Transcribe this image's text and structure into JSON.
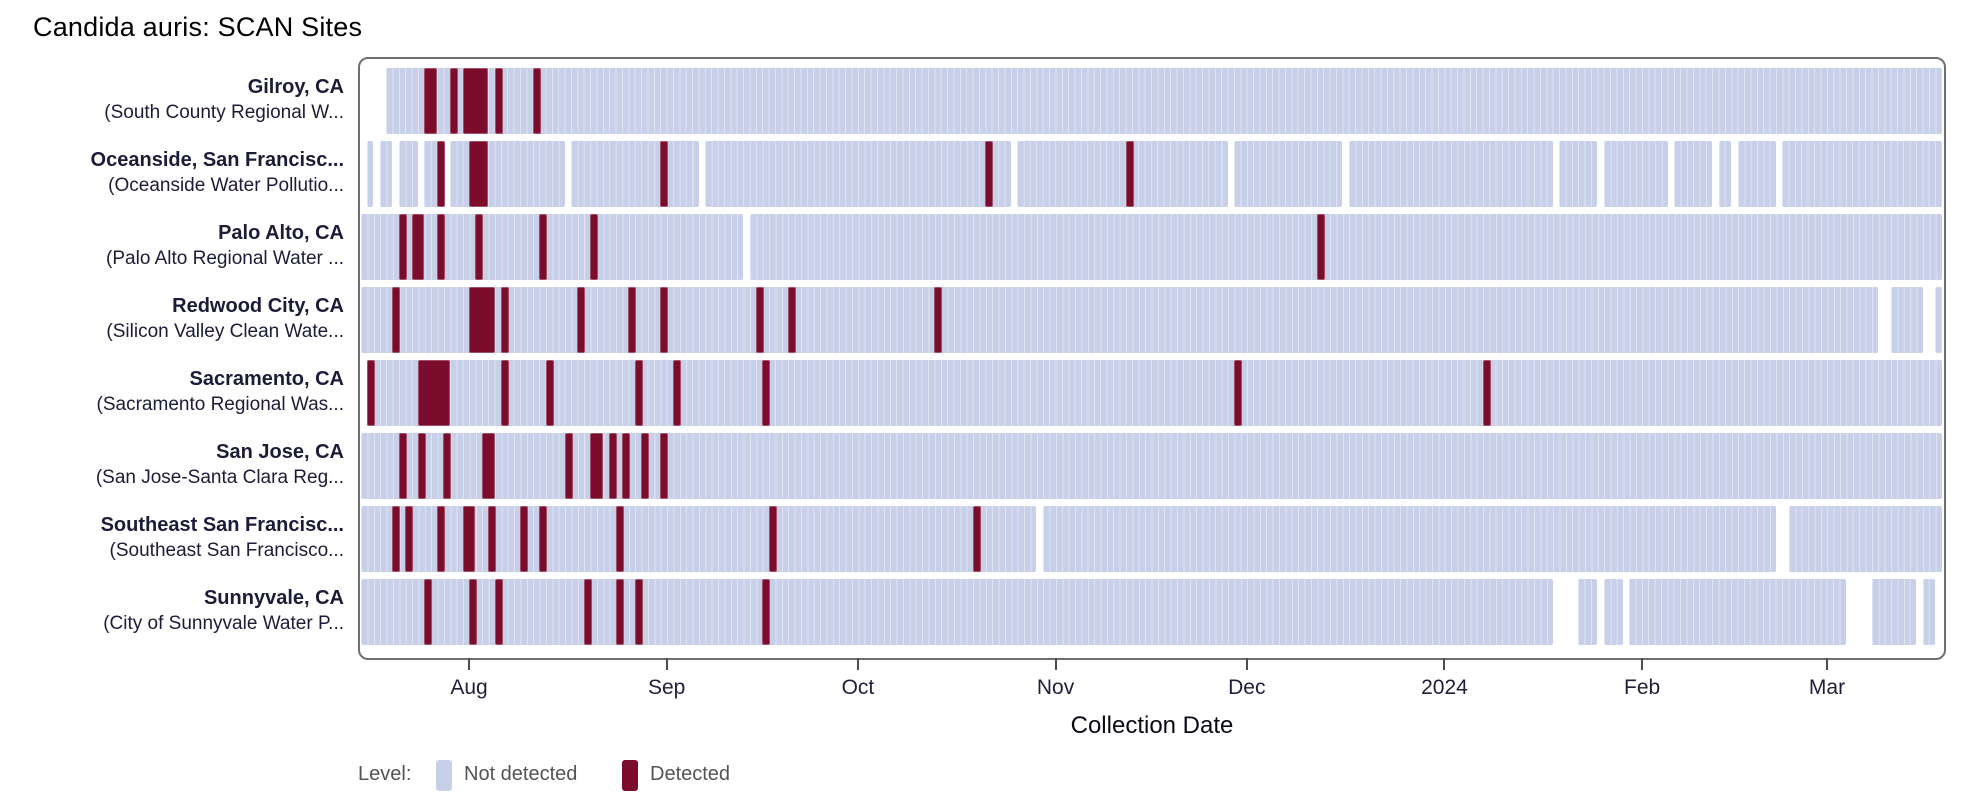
{
  "title": "Candida auris: SCAN Sites",
  "axis": {
    "title": "Collection Date"
  },
  "legend": {
    "label": "Level:",
    "items": [
      {
        "label": "Not detected",
        "color": "#c7cfe9"
      },
      {
        "label": "Detected",
        "color": "#7b0c2b"
      }
    ]
  },
  "chart_data": {
    "type": "heatmap",
    "title": "Candida auris: SCAN Sites",
    "xlabel": "Collection Date",
    "ylabel": "",
    "x_range": [
      "2023-07-15",
      "2024-03-19"
    ],
    "legend_position": "bottom-left",
    "colors": {
      "not_detected": "#c7cfe9",
      "detected": "#7b0c2b"
    },
    "x_ticks": [
      {
        "label": "Aug",
        "date": "2023-08-01"
      },
      {
        "label": "Sep",
        "date": "2023-09-01"
      },
      {
        "label": "Oct",
        "date": "2023-10-01"
      },
      {
        "label": "Nov",
        "date": "2023-11-01"
      },
      {
        "label": "Dec",
        "date": "2023-12-01"
      },
      {
        "label": "2024",
        "date": "2024-01-01"
      },
      {
        "label": "Feb",
        "date": "2024-02-01"
      },
      {
        "label": "Mar",
        "date": "2024-03-01"
      }
    ],
    "sites": [
      {
        "name": "Gilroy, CA",
        "facility": "(South County Regional W...",
        "sampled": [
          [
            "2023-07-19",
            "2024-03-19"
          ]
        ],
        "detected": [
          [
            "2023-07-25",
            "2023-07-27"
          ],
          [
            "2023-07-29",
            "2023-07-30"
          ],
          [
            "2023-07-31",
            "2023-08-04"
          ],
          [
            "2023-08-05",
            "2023-08-06"
          ],
          [
            "2023-08-11",
            "2023-08-12"
          ]
        ]
      },
      {
        "name": "Oceanside, San Francisc...",
        "facility": "(Oceanside Water Pollutio...",
        "sampled": [
          [
            "2023-07-16",
            "2023-07-17"
          ],
          [
            "2023-07-18",
            "2023-07-20"
          ],
          [
            "2023-07-21",
            "2023-07-24"
          ],
          [
            "2023-07-25",
            "2023-07-28"
          ],
          [
            "2023-07-29",
            "2023-08-16"
          ],
          [
            "2023-08-17",
            "2023-09-06"
          ],
          [
            "2023-09-07",
            "2023-10-25"
          ],
          [
            "2023-10-26",
            "2023-11-28"
          ],
          [
            "2023-11-29",
            "2023-12-16"
          ],
          [
            "2023-12-17",
            "2024-01-18"
          ],
          [
            "2024-01-19",
            "2024-01-25"
          ],
          [
            "2024-01-26",
            "2024-02-05"
          ],
          [
            "2024-02-06",
            "2024-02-12"
          ],
          [
            "2024-02-13",
            "2024-02-15"
          ],
          [
            "2024-02-16",
            "2024-02-22"
          ],
          [
            "2024-02-23",
            "2024-03-19"
          ]
        ],
        "detected": [
          [
            "2023-07-27",
            "2023-07-28"
          ],
          [
            "2023-08-01",
            "2023-08-04"
          ],
          [
            "2023-08-31",
            "2023-09-01"
          ],
          [
            "2023-10-21",
            "2023-10-22"
          ],
          [
            "2023-11-12",
            "2023-11-13"
          ]
        ]
      },
      {
        "name": "Palo Alto, CA",
        "facility": "(Palo Alto Regional Water ...",
        "sampled": [
          [
            "2023-07-15",
            "2023-09-13"
          ],
          [
            "2023-09-14",
            "2024-03-19"
          ]
        ],
        "detected": [
          [
            "2023-07-21",
            "2023-07-22"
          ],
          [
            "2023-07-23",
            "2023-07-25"
          ],
          [
            "2023-07-27",
            "2023-07-28"
          ],
          [
            "2023-08-02",
            "2023-08-03"
          ],
          [
            "2023-08-12",
            "2023-08-13"
          ],
          [
            "2023-08-20",
            "2023-08-21"
          ],
          [
            "2023-12-12",
            "2023-12-13"
          ]
        ]
      },
      {
        "name": "Redwood City, CA",
        "facility": "(Silicon Valley Clean Wate...",
        "sampled": [
          [
            "2023-07-15",
            "2024-03-09"
          ],
          [
            "2024-03-11",
            "2024-03-16"
          ],
          [
            "2024-03-18",
            "2024-03-19"
          ]
        ],
        "detected": [
          [
            "2023-07-20",
            "2023-07-21"
          ],
          [
            "2023-08-01",
            "2023-08-05"
          ],
          [
            "2023-08-06",
            "2023-08-07"
          ],
          [
            "2023-08-18",
            "2023-08-19"
          ],
          [
            "2023-08-26",
            "2023-08-27"
          ],
          [
            "2023-08-31",
            "2023-09-01"
          ],
          [
            "2023-09-15",
            "2023-09-16"
          ],
          [
            "2023-09-20",
            "2023-09-21"
          ],
          [
            "2023-10-13",
            "2023-10-14"
          ]
        ]
      },
      {
        "name": "Sacramento, CA",
        "facility": "(Sacramento Regional Was...",
        "sampled": [
          [
            "2023-07-16",
            "2024-03-19"
          ]
        ],
        "detected": [
          [
            "2023-07-16",
            "2023-07-17"
          ],
          [
            "2023-07-24",
            "2023-07-29"
          ],
          [
            "2023-08-06",
            "2023-08-07"
          ],
          [
            "2023-08-13",
            "2023-08-14"
          ],
          [
            "2023-08-27",
            "2023-08-28"
          ],
          [
            "2023-09-02",
            "2023-09-03"
          ],
          [
            "2023-09-16",
            "2023-09-17"
          ],
          [
            "2023-11-29",
            "2023-11-30"
          ],
          [
            "2024-01-07",
            "2024-01-08"
          ]
        ]
      },
      {
        "name": "San Jose, CA",
        "facility": "(San Jose-Santa Clara Reg...",
        "sampled": [
          [
            "2023-07-15",
            "2024-03-19"
          ]
        ],
        "detected": [
          [
            "2023-07-21",
            "2023-07-22"
          ],
          [
            "2023-07-24",
            "2023-07-25"
          ],
          [
            "2023-07-28",
            "2023-07-29"
          ],
          [
            "2023-08-03",
            "2023-08-05"
          ],
          [
            "2023-08-16",
            "2023-08-17"
          ],
          [
            "2023-08-20",
            "2023-08-22"
          ],
          [
            "2023-08-23",
            "2023-08-24"
          ],
          [
            "2023-08-25",
            "2023-08-26"
          ],
          [
            "2023-08-28",
            "2023-08-29"
          ],
          [
            "2023-08-31",
            "2023-09-01"
          ]
        ]
      },
      {
        "name": "Southeast San Francisc...",
        "facility": "(Southeast San Francisco...",
        "sampled": [
          [
            "2023-07-15",
            "2023-10-29"
          ],
          [
            "2023-10-30",
            "2024-02-22"
          ],
          [
            "2024-02-24",
            "2024-03-19"
          ]
        ],
        "detected": [
          [
            "2023-07-20",
            "2023-07-21"
          ],
          [
            "2023-07-22",
            "2023-07-23"
          ],
          [
            "2023-07-27",
            "2023-07-28"
          ],
          [
            "2023-07-31",
            "2023-08-02"
          ],
          [
            "2023-08-04",
            "2023-08-05"
          ],
          [
            "2023-08-09",
            "2023-08-10"
          ],
          [
            "2023-08-12",
            "2023-08-13"
          ],
          [
            "2023-08-24",
            "2023-08-25"
          ],
          [
            "2023-09-17",
            "2023-09-18"
          ],
          [
            "2023-10-19",
            "2023-10-20"
          ]
        ]
      },
      {
        "name": "Sunnyvale, CA",
        "facility": "(City of Sunnyvale Water P...",
        "sampled": [
          [
            "2023-07-15",
            "2024-01-18"
          ],
          [
            "2024-01-22",
            "2024-01-25"
          ],
          [
            "2024-01-26",
            "2024-01-29"
          ],
          [
            "2024-01-30",
            "2024-03-04"
          ],
          [
            "2024-03-08",
            "2024-03-15"
          ],
          [
            "2024-03-16",
            "2024-03-18"
          ]
        ],
        "detected": [
          [
            "2023-07-25",
            "2023-07-26"
          ],
          [
            "2023-08-01",
            "2023-08-02"
          ],
          [
            "2023-08-05",
            "2023-08-06"
          ],
          [
            "2023-08-19",
            "2023-08-20"
          ],
          [
            "2023-08-24",
            "2023-08-25"
          ],
          [
            "2023-08-27",
            "2023-08-28"
          ],
          [
            "2023-09-16",
            "2023-09-17"
          ]
        ]
      }
    ]
  }
}
